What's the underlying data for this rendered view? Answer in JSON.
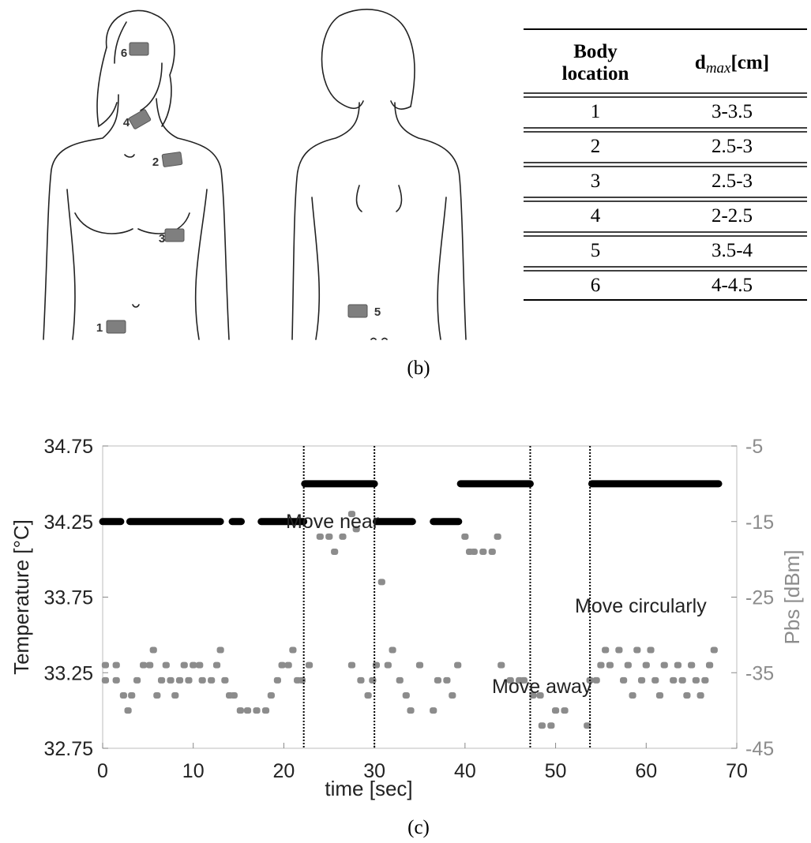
{
  "panel_b": {
    "markers": [
      "1",
      "2",
      "3",
      "4",
      "5",
      "6"
    ],
    "table": {
      "header": [
        [
          "Body",
          "location"
        ],
        {
          "symbol": "d",
          "subscript": "max",
          "unit": "[cm]"
        }
      ],
      "rows": [
        [
          "1",
          "3-3.5"
        ],
        [
          "2",
          "2.5-3"
        ],
        [
          "3",
          "2.5-3"
        ],
        [
          "4",
          "2-2.5"
        ],
        [
          "5",
          "3.5-4"
        ],
        [
          "6",
          "4-4.5"
        ]
      ]
    },
    "caption": "(b)"
  },
  "chart_data": {
    "type": "line",
    "xlabel": "time [sec]",
    "ylabel": "Temperature [°C]",
    "y2label": "Pbs [dBm]",
    "xlim": [
      0,
      70
    ],
    "xticks": [
      0,
      10,
      20,
      30,
      40,
      50,
      60,
      70
    ],
    "ylim": [
      32.75,
      34.75
    ],
    "yticks": [
      32.75,
      33.25,
      33.75,
      34.25,
      34.75
    ],
    "y2lim": [
      -45,
      -5
    ],
    "y2ticks": [
      -45,
      -35,
      -25,
      -15,
      -5
    ],
    "grid": false,
    "vlines": [
      22.2,
      30,
      47.2,
      53.8
    ],
    "annotations": [
      "Move near",
      "Move away",
      "Move circularly"
    ],
    "series": [
      {
        "type": "line",
        "color": "#000000",
        "x": [
          0,
          2,
          2.5,
          3,
          13,
          13.6,
          14.3,
          15.3,
          16.4,
          17.5,
          22.2,
          22.25,
          22.3,
          30,
          30.1,
          30.2,
          34.2,
          35.3,
          36.5,
          39.3,
          39.4,
          39.5,
          47.2,
          50.5,
          54,
          68
        ],
        "values": [
          34.25,
          34.25,
          null,
          34.25,
          34.25,
          null,
          34.25,
          34.25,
          null,
          34.25,
          34.25,
          null,
          34.5,
          34.5,
          null,
          34.25,
          34.25,
          null,
          34.25,
          34.25,
          null,
          34.5,
          34.5,
          null,
          34.5,
          34.5
        ]
      },
      {
        "type": "scatter",
        "axis": "y2",
        "color": "#8c8c8c",
        "x": [
          0.3,
          0.3,
          1.5,
          1.5,
          2.3,
          2.8,
          3.2,
          3.8,
          4.5,
          5.2,
          5.6,
          6,
          6.5,
          7,
          7.5,
          8,
          8.5,
          9,
          9.5,
          10,
          10.7,
          11,
          12,
          12.6,
          13,
          13.5,
          14,
          14.5,
          15.2,
          16,
          17,
          18,
          18.6,
          19.3,
          19.8,
          20.5,
          21,
          21.5,
          22,
          22.8,
          24,
          25,
          25.6,
          26.5,
          27.5,
          27.5,
          28,
          28.5,
          29.3,
          29.8,
          30.2,
          30.8,
          31.5,
          32,
          32.8,
          33.5,
          34,
          35,
          36.5,
          37,
          38,
          38.6,
          39.2,
          40,
          40.5,
          41,
          42,
          43,
          43.6,
          44,
          45,
          46,
          46.5,
          47.5,
          48.3,
          48.5,
          49.5,
          50,
          51,
          53.5,
          53.8,
          54.5,
          55,
          55.5,
          56,
          57,
          57.5,
          58,
          58.5,
          59,
          59.5,
          60,
          60.5,
          61,
          61.5,
          62,
          63,
          63.5,
          64,
          64.5,
          65,
          65.5,
          66,
          66.5,
          67,
          67.5
        ],
        "values": [
          -34,
          -36,
          -34,
          -36,
          -38,
          -40,
          -38,
          -36,
          -34,
          -34,
          -32,
          -38,
          -36,
          -34,
          -36,
          -38,
          -36,
          -34,
          -36,
          -34,
          -34,
          -36,
          -36,
          -34,
          -32,
          -36,
          -38,
          -38,
          -40,
          -40,
          -40,
          -40,
          -38,
          -36,
          -34,
          -34,
          -32,
          -36,
          -36,
          -34,
          -17,
          -17,
          -19,
          -17,
          -14,
          -34,
          -16,
          -36,
          -38,
          -36,
          -34,
          -23,
          -34,
          -32,
          -36,
          -38,
          -40,
          -34,
          -40,
          -36,
          -36,
          -38,
          -34,
          -17,
          -19,
          -19,
          -19,
          -19,
          -17,
          -34,
          -36,
          -36,
          -36,
          -38,
          -38,
          -42,
          -42,
          -40,
          -40,
          -42,
          -36,
          -36,
          -34,
          -32,
          -34,
          -32,
          -36,
          -34,
          -38,
          -32,
          -36,
          -34,
          -32,
          -36,
          -38,
          -34,
          -36,
          -34,
          -36,
          -38,
          -34,
          -36,
          -38,
          -36,
          -34,
          -32
        ]
      }
    ]
  },
  "caption_c": "(c)"
}
